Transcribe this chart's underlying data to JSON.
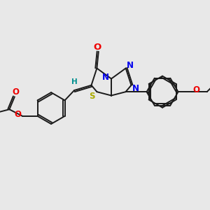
{
  "bg_color": "#e8e8e8",
  "bond_color": "#1a1a1a",
  "N_color": "#0000ee",
  "O_color": "#ee0000",
  "S_color": "#aaaa00",
  "H_color": "#009090",
  "bond_lw": 1.4,
  "dbo": 0.055,
  "fs": 8.5,
  "xlim": [
    0,
    10
  ],
  "ylim": [
    0,
    10
  ]
}
